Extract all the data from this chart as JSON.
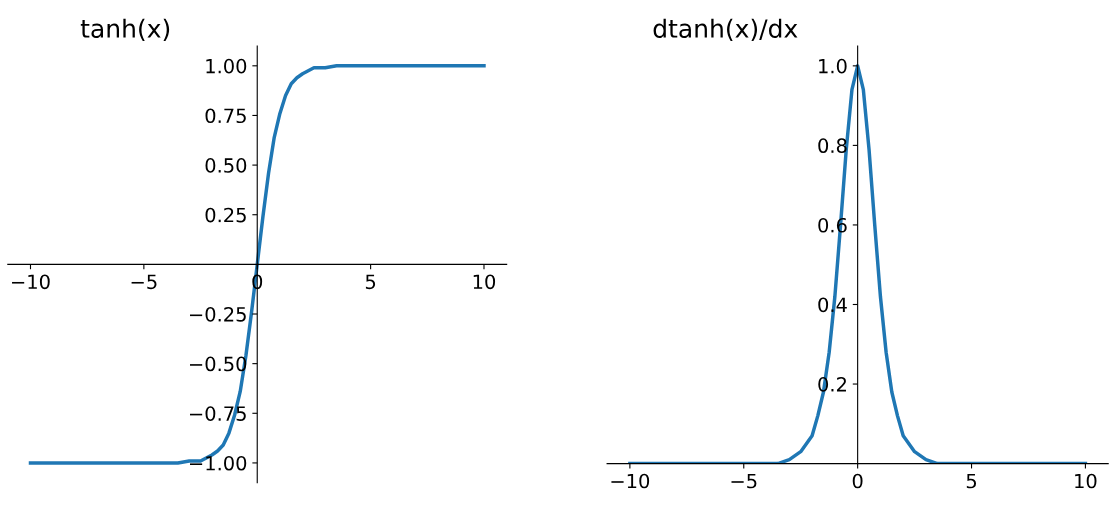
{
  "chart_data": [
    {
      "type": "line",
      "title": "tanh(x)",
      "x": [
        -10,
        -8,
        -6,
        -5,
        -4,
        -3.5,
        -3,
        -2.5,
        -2,
        -1.75,
        -1.5,
        -1.25,
        -1,
        -0.75,
        -0.5,
        -0.25,
        0,
        0.25,
        0.5,
        0.75,
        1,
        1.25,
        1.5,
        1.75,
        2,
        2.5,
        3,
        3.5,
        4,
        5,
        6,
        8,
        10
      ],
      "series": [
        {
          "color": "#1f77b4",
          "values": [
            -1.0,
            -1.0,
            -1.0,
            -1.0,
            -1.0,
            -1.0,
            -0.99,
            -0.99,
            -0.96,
            -0.94,
            -0.91,
            -0.85,
            -0.76,
            -0.64,
            -0.46,
            -0.24,
            0,
            0.24,
            0.46,
            0.64,
            0.76,
            0.85,
            0.91,
            0.94,
            0.96,
            0.99,
            0.99,
            1.0,
            1.0,
            1.0,
            1.0,
            1.0,
            1.0
          ]
        }
      ],
      "xlim": [
        -11,
        11
      ],
      "ylim": [
        -1.1,
        1.1
      ],
      "xticks": [
        -10,
        -5,
        0,
        5,
        10
      ],
      "yticks": [
        {
          "value": -1,
          "label": "−1.00"
        },
        {
          "value": -0.75,
          "label": "−0.75"
        },
        {
          "value": -0.5,
          "label": "−0.50"
        },
        {
          "value": -0.25,
          "label": "−0.25"
        },
        {
          "value": 0.25,
          "label": "0.25"
        },
        {
          "value": 0.5,
          "label": "0.50"
        },
        {
          "value": 0.75,
          "label": "0.75"
        },
        {
          "value": 1,
          "label": "1.00"
        }
      ]
    },
    {
      "type": "line",
      "title": "dtanh(x)/dx",
      "x": [
        -10,
        -8,
        -6,
        -5,
        -4,
        -3.5,
        -3,
        -2.5,
        -2,
        -1.75,
        -1.5,
        -1.25,
        -1,
        -0.75,
        -0.5,
        -0.25,
        0,
        0.25,
        0.5,
        0.75,
        1,
        1.25,
        1.5,
        1.75,
        2,
        2.5,
        3,
        3.5,
        4,
        5,
        6,
        8,
        10
      ],
      "series": [
        {
          "color": "#1f77b4",
          "values": [
            0,
            0,
            0,
            0,
            0,
            0,
            0.01,
            0.03,
            0.07,
            0.12,
            0.18,
            0.28,
            0.42,
            0.6,
            0.79,
            0.94,
            1.0,
            0.94,
            0.79,
            0.6,
            0.42,
            0.28,
            0.18,
            0.12,
            0.07,
            0.03,
            0.01,
            0,
            0,
            0,
            0,
            0,
            0
          ]
        }
      ],
      "xlim": [
        -11,
        11
      ],
      "ylim": [
        0,
        1.05
      ],
      "xticks": [
        -10,
        -5,
        0,
        5,
        10
      ],
      "yticks": [
        0.2,
        0.4,
        0.6,
        0.8,
        {
          "value": 1,
          "label": "1.0"
        }
      ]
    }
  ]
}
